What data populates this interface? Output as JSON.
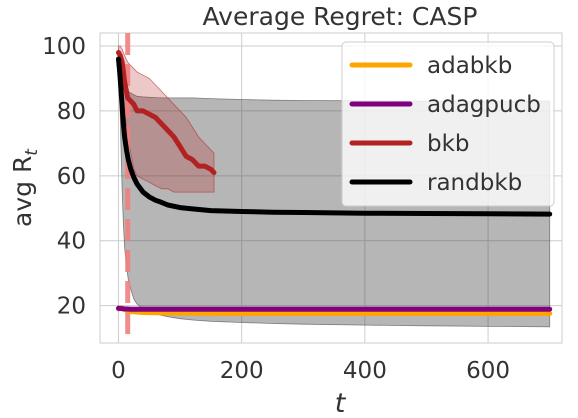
{
  "chart_data": {
    "type": "line",
    "title": "Average Regret: CASP",
    "xlabel": "t",
    "ylabel_main": "avg R",
    "ylabel_sub": "t",
    "xlim": [
      -30,
      720
    ],
    "ylim": [
      8.5,
      104
    ],
    "x_ticks": [
      0,
      200,
      400,
      600
    ],
    "y_ticks": [
      20,
      40,
      60,
      80,
      100
    ],
    "grid": true,
    "legend_placement": "top-right",
    "vline": {
      "x": 15,
      "color": "#f08080"
    },
    "series": [
      {
        "name": "adabkb",
        "color": "#ffa500",
        "x": [
          0,
          5,
          10,
          20,
          40,
          100,
          200,
          400,
          700
        ],
        "y": [
          19,
          19.3,
          18.8,
          18.2,
          17.9,
          17.7,
          17.6,
          17.6,
          17.6
        ],
        "band": null
      },
      {
        "name": "adagpucb",
        "color": "#800080",
        "x": [
          0,
          5,
          10,
          20,
          100,
          200,
          400,
          700
        ],
        "y": [
          19.2,
          19.1,
          19.0,
          18.9,
          18.9,
          18.9,
          18.9,
          18.9
        ],
        "band": null
      },
      {
        "name": "bkb",
        "color": "#b22222",
        "band_color": "#b22222",
        "x": [
          0,
          3,
          6,
          10,
          15,
          20,
          25,
          30,
          40,
          50,
          60,
          70,
          80,
          90,
          100,
          110,
          120,
          130,
          140,
          150,
          155
        ],
        "y": [
          98,
          97,
          95,
          89,
          84,
          83,
          82,
          80,
          80,
          79,
          78,
          76,
          74,
          72,
          69,
          66,
          65,
          63,
          63,
          62,
          61
        ],
        "lower": [
          96,
          93,
          88,
          80,
          72,
          67,
          62,
          60,
          59,
          58,
          57,
          56,
          56,
          55,
          55,
          55,
          55,
          55,
          55,
          55,
          55
        ],
        "upper": [
          100,
          100,
          99,
          97,
          95,
          94,
          93,
          92,
          91,
          90,
          88,
          86,
          84,
          82,
          80,
          78,
          75,
          72,
          70,
          68,
          67
        ]
      },
      {
        "name": "randbkb",
        "color": "#000000",
        "band_color": "#404040",
        "x": [
          0,
          2,
          4,
          6,
          8,
          10,
          13,
          16,
          20,
          25,
          30,
          40,
          50,
          60,
          70,
          80,
          100,
          120,
          150,
          200,
          250,
          300,
          400,
          500,
          600,
          700
        ],
        "y": [
          96,
          92,
          87,
          81,
          76,
          72,
          68,
          65,
          62,
          59.5,
          57.5,
          55,
          53.5,
          52.5,
          51.8,
          51,
          50.2,
          49.8,
          49.3,
          49.0,
          48.8,
          48.7,
          48.5,
          48.4,
          48.3,
          48.2
        ],
        "lower": [
          95,
          86,
          70,
          55,
          45,
          38,
          32,
          28,
          25,
          22,
          20.5,
          19,
          18.2,
          17.5,
          17,
          16.6,
          16,
          15.6,
          15.2,
          14.8,
          14.5,
          14.3,
          14.0,
          13.8,
          13.6,
          13.5
        ],
        "upper": [
          97,
          95,
          93,
          91,
          89,
          88,
          87,
          86,
          85.5,
          85,
          84.5,
          84.3,
          84.2,
          84.1,
          84,
          84,
          84,
          84,
          83.8,
          83.5,
          83.3,
          83.2,
          83.1,
          83.0,
          83.0,
          83.0
        ]
      }
    ]
  }
}
